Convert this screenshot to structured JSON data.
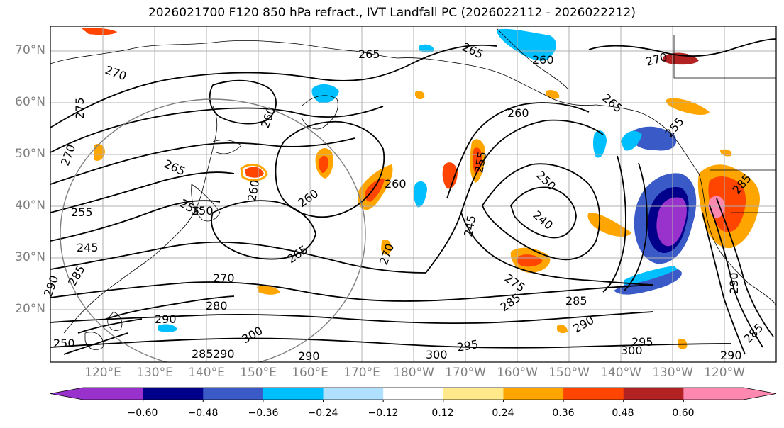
{
  "title": "2026021700 F120 850 hPa refract., IVT Landfall PC (2026022112 - 2026022212)",
  "lat_labels": [
    "70°N",
    "60°N",
    "50°N",
    "40°N",
    "30°N",
    "20°N"
  ],
  "lon_labels": [
    "120°E",
    "130°E",
    "140°E",
    "150°E",
    "160°E",
    "170°E",
    "180°W",
    "170°W",
    "160°W",
    "150°W",
    "140°W",
    "130°W",
    "120°W"
  ],
  "colorbar": {
    "colors": [
      "#9932CC",
      "#00008B",
      "#3A5BC7",
      "#00BFFF",
      "#B0E0FF",
      "#FFFFFF",
      "#FFE98A",
      "#FFA500",
      "#FF4500",
      "#B22222",
      "#FF88B0"
    ],
    "tick_labels": [
      "−0.60",
      "−0.48",
      "−0.36",
      "−0.24",
      "−0.12",
      "0.12",
      "0.24",
      "0.36",
      "0.48",
      "0.60"
    ]
  },
  "contour_labels": [
    "265",
    "265",
    "260",
    "270",
    "270",
    "275",
    "270",
    "265",
    "260",
    "260",
    "255",
    "265",
    "260",
    "260",
    "255",
    "250",
    "255",
    "245",
    "260",
    "240",
    "245",
    "250",
    "265",
    "270",
    "270",
    "280",
    "275",
    "285",
    "285",
    "290",
    "290",
    "300",
    "295",
    "300",
    "300",
    "290",
    "295",
    "290",
    "290",
    "285",
    "285",
    "250",
    "255",
    "290",
    "285",
    "290",
    "285"
  ]
}
